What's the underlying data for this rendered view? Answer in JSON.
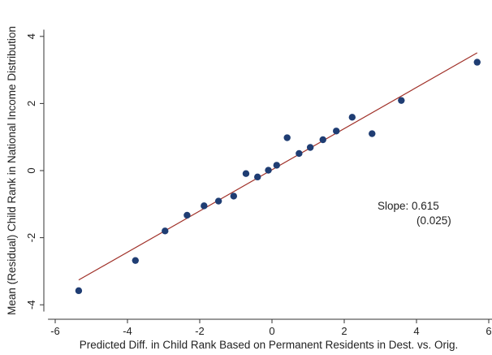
{
  "chart_data": {
    "type": "scatter",
    "title": "",
    "xlabel": "Predicted Diff. in Child Rank Based on Permanent Residents in Dest. vs. Orig.",
    "ylabel": "Mean (Residual) Child Rank in National Income Distribution",
    "xlim": [
      -6.2,
      6.2
    ],
    "ylim": [
      -4.2,
      4.2
    ],
    "xticks": [
      -6,
      -4,
      -2,
      0,
      2,
      4,
      6
    ],
    "yticks": [
      -4,
      -2,
      0,
      2,
      4
    ],
    "grid": false,
    "legend": "none",
    "colors": {
      "points": "#1f3d73",
      "fit_line": "#a03028",
      "axes": "#333333",
      "background": "#ffffff"
    },
    "points": [
      {
        "x": -5.35,
        "y": -3.58
      },
      {
        "x": -3.78,
        "y": -2.68
      },
      {
        "x": -2.96,
        "y": -1.8
      },
      {
        "x": -2.35,
        "y": -1.33
      },
      {
        "x": -1.88,
        "y": -1.05
      },
      {
        "x": -1.48,
        "y": -0.91
      },
      {
        "x": -1.06,
        "y": -0.76
      },
      {
        "x": -0.72,
        "y": -0.09
      },
      {
        "x": -0.4,
        "y": -0.19
      },
      {
        "x": -0.1,
        "y": 0.01
      },
      {
        "x": 0.13,
        "y": 0.16
      },
      {
        "x": 0.42,
        "y": 0.98
      },
      {
        "x": 0.75,
        "y": 0.51
      },
      {
        "x": 1.06,
        "y": 0.69
      },
      {
        "x": 1.41,
        "y": 0.92
      },
      {
        "x": 1.78,
        "y": 1.18
      },
      {
        "x": 2.22,
        "y": 1.59
      },
      {
        "x": 2.77,
        "y": 1.1
      },
      {
        "x": 3.58,
        "y": 2.09
      },
      {
        "x": 5.68,
        "y": 3.23
      }
    ],
    "fit_line": {
      "x1": -5.35,
      "y1": -3.26,
      "x2": 5.68,
      "y2": 3.51
    },
    "annotation": {
      "slope_text": "Slope: 0.615",
      "se_text": "(0.025)"
    }
  }
}
